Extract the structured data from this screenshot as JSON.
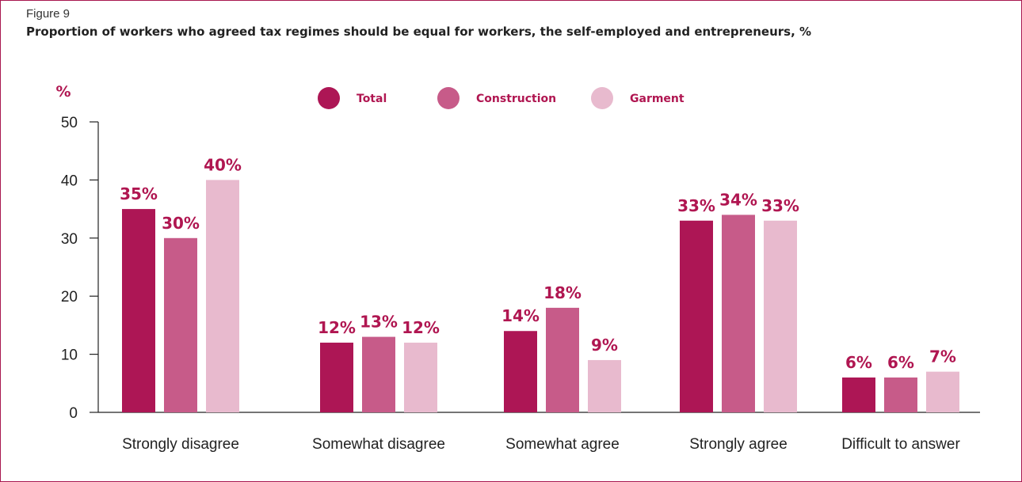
{
  "figure": {
    "label": "Figure 9",
    "title": "Proportion of workers who agreed tax regimes should be equal for workers, the self-employed and entrepreneurs, %"
  },
  "colors": {
    "border": "#a8174f",
    "accent_text": "#b01651",
    "axis": "#222222",
    "series": [
      "#ad1655",
      "#c75b89",
      "#e8bace"
    ]
  },
  "chart_data": {
    "type": "bar",
    "unit_label": "%",
    "categories": [
      "Strongly disagree",
      "Somewhat disagree",
      "Somewhat agree",
      "Strongly agree",
      "Difficult to answer"
    ],
    "series": [
      {
        "name": "Total",
        "values": [
          35,
          12,
          14,
          33,
          6
        ],
        "labels": [
          "35%",
          "12%",
          "14%",
          "33%",
          "6%"
        ]
      },
      {
        "name": "Construction",
        "values": [
          30,
          13,
          18,
          34,
          6
        ],
        "labels": [
          "30%",
          "13%",
          "18%",
          "34%",
          "6%"
        ]
      },
      {
        "name": "Garment",
        "values": [
          40,
          12,
          9,
          33,
          7
        ],
        "labels": [
          "40%",
          "12%",
          "9%",
          "33%",
          "7%"
        ]
      }
    ],
    "yticks": [
      0,
      10,
      20,
      30,
      40,
      50
    ],
    "ylim": [
      0,
      50
    ],
    "grid": false,
    "legend_position": "top"
  }
}
